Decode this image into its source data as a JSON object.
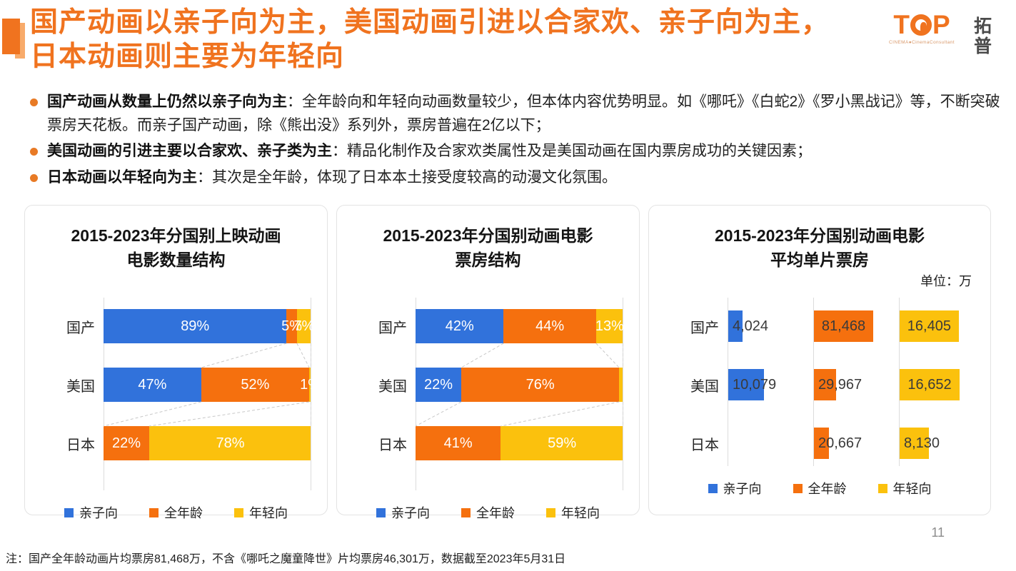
{
  "colors": {
    "accent": "#F0731F",
    "series": [
      "#3172DB",
      "#F5700E",
      "#FBC10D"
    ],
    "axis_line": "#DCDCDC",
    "connector": "#C8C8C8"
  },
  "header": {
    "title_line1": "国产动画以亲子向为主，美国动画引进以合家欢、亲子向为主，",
    "title_line2": "日本动画则主要为年轻向"
  },
  "logo": {
    "letter_t": "T",
    "letter_p": "P",
    "tagline": "CINEMA●CinemaConsultant",
    "cn_top": "拓",
    "cn_bottom": "普"
  },
  "bullets": [
    {
      "lead": "国产动画从数量上仍然以亲子向为主",
      "text": "：全年龄向和年轻向动画数量较少，但本体内容优势明显。如《哪吒》《白蛇2》《罗小黑战记》等，不断突破票房天花板。而亲子国产动画，除《熊出没》系列外，票房普遍在2亿以下；"
    },
    {
      "lead": "美国动画的引进主要以合家欢、亲子类为主",
      "text": "：精品化制作及合家欢类属性及是美国动画在国内票房成功的关键因素；"
    },
    {
      "lead": "日本动画以年轻向为主",
      "text": "：其次是全年龄，体现了日本本土接受度较高的动漫文化氛围。"
    }
  ],
  "legend": [
    "亲子向",
    "全年龄",
    "年轻向"
  ],
  "chart_data": [
    {
      "type": "bar",
      "subtype": "horizontal-stacked-percent",
      "title": "2015-2023年分国别上映动画电影数量结构",
      "title_lines": [
        "2015-2023年分国别上映动画",
        "电影数量结构"
      ],
      "categories": [
        "国产",
        "美国",
        "日本"
      ],
      "series": [
        {
          "name": "亲子向",
          "values": [
            89,
            47,
            0
          ]
        },
        {
          "name": "全年龄",
          "values": [
            5,
            52,
            22
          ]
        },
        {
          "name": "年轻向",
          "values": [
            7,
            1,
            78
          ]
        }
      ],
      "data_labels": [
        [
          "89%",
          "47%",
          ""
        ],
        [
          "5%",
          "52%",
          "22%"
        ],
        [
          "7%",
          "1%",
          "78%"
        ]
      ],
      "unit": "%",
      "legend_position": "bottom"
    },
    {
      "type": "bar",
      "subtype": "horizontal-stacked-percent",
      "title": "2015-2023年分国别动画电影票房结构",
      "title_lines": [
        "2015-2023年分国别动画电影",
        "票房结构"
      ],
      "categories": [
        "国产",
        "美国",
        "日本"
      ],
      "series": [
        {
          "name": "亲子向",
          "values": [
            42,
            22,
            0
          ]
        },
        {
          "name": "全年龄",
          "values": [
            44,
            76,
            41
          ]
        },
        {
          "name": "年轻向",
          "values": [
            13,
            2,
            59
          ]
        }
      ],
      "data_labels": [
        [
          "42%",
          "22%",
          ""
        ],
        [
          "44%",
          "76%",
          "41%"
        ],
        [
          "13%",
          "",
          "59%"
        ]
      ],
      "unit": "%",
      "legend_position": "bottom"
    },
    {
      "type": "bar",
      "subtype": "horizontal-grouped-columns",
      "title": "2015-2023年分国别动画电影平均单片票房",
      "title_lines": [
        "2015-2023年分国别动画电影",
        "平均单片票房"
      ],
      "unit_note": "单位：万",
      "categories": [
        "国产",
        "美国",
        "日本"
      ],
      "series": [
        {
          "name": "亲子向",
          "values": [
            4024,
            10079,
            null
          ]
        },
        {
          "name": "全年龄",
          "values": [
            81468,
            29967,
            20667
          ]
        },
        {
          "name": "年轻向",
          "values": [
            16405,
            16652,
            8130
          ]
        }
      ],
      "data_labels": [
        [
          "4,024",
          "10,079",
          ""
        ],
        [
          "81,468",
          "29,967",
          "20,667"
        ],
        [
          "16,405",
          "16,652",
          "8,130"
        ]
      ],
      "legend_position": "bottom"
    }
  ],
  "page": {
    "note": "注：国产全年龄动画片均票房81,468万，不含《哪吒之魔童降世》片均票房46,301万，数据截至2023年5月31日",
    "number": "11"
  }
}
